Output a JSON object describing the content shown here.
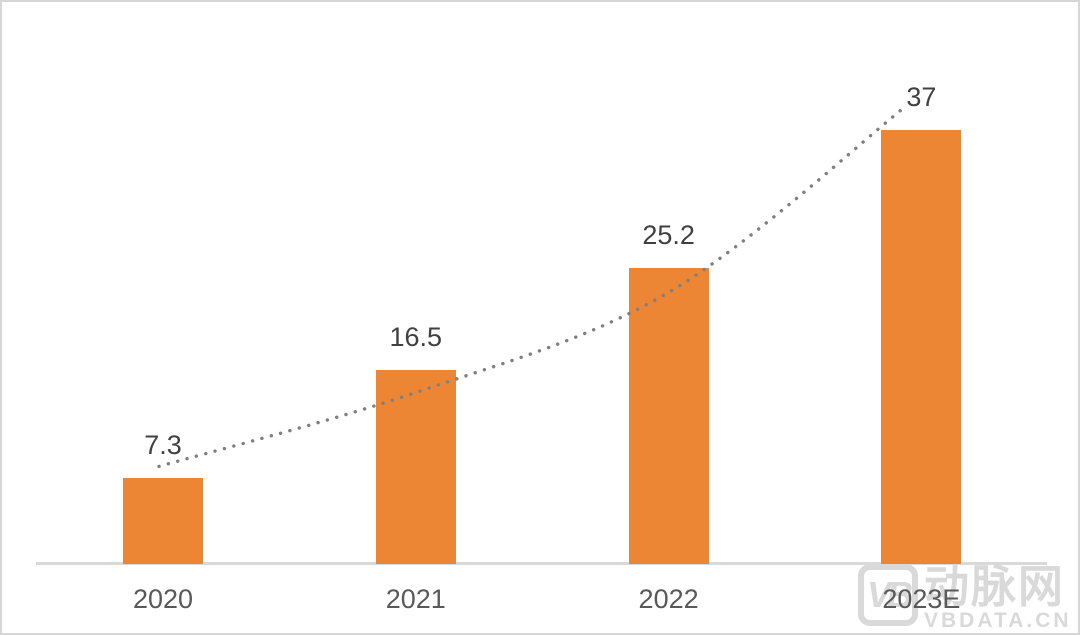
{
  "chart_data": {
    "type": "bar",
    "categories": [
      "2020",
      "2021",
      "2022",
      "2023E"
    ],
    "values": [
      7.3,
      16.5,
      25.2,
      37
    ],
    "value_labels": [
      "7.3",
      "16.5",
      "25.2",
      "37"
    ],
    "title": "",
    "xlabel": "",
    "ylabel": "",
    "ylim": [
      0,
      40
    ],
    "grid": false,
    "legend_position": "none",
    "bar_color": "#ED8634",
    "axis_line_color": "#D9D9D9",
    "value_label_color": "#404040",
    "category_label_color": "#595959",
    "trendline": {
      "style": "dotted",
      "color": "#7F7F7F",
      "shape": "smooth-exponential"
    }
  },
  "watermark": {
    "logo_text": "VB",
    "brand_text": "动脉网",
    "url_text": "VBDATA.CN",
    "color": "#D9D9D9"
  }
}
